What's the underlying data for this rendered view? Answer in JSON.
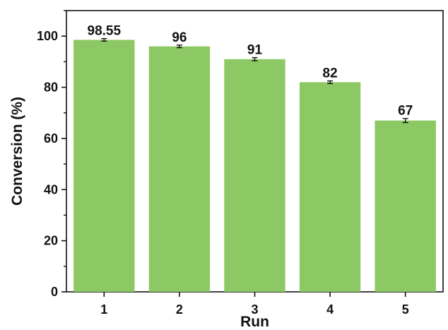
{
  "chart_data": {
    "type": "bar",
    "categories": [
      "1",
      "2",
      "3",
      "4",
      "5"
    ],
    "values": [
      98.55,
      96,
      91,
      82,
      67
    ],
    "error": [
      0.5,
      0.5,
      0.6,
      0.5,
      0.8
    ],
    "data_labels": [
      "98.55",
      "96",
      "91",
      "82",
      "67"
    ],
    "xlabel": "Run",
    "ylabel": "Conversion (%)",
    "ylim": [
      0,
      110
    ],
    "yticks": [
      0,
      20,
      40,
      60,
      80,
      100
    ],
    "ytick_labels": [
      "0",
      "20",
      "40",
      "60",
      "80",
      "100"
    ],
    "bar_color": "#8cc864",
    "grid": false,
    "legend": "none"
  }
}
